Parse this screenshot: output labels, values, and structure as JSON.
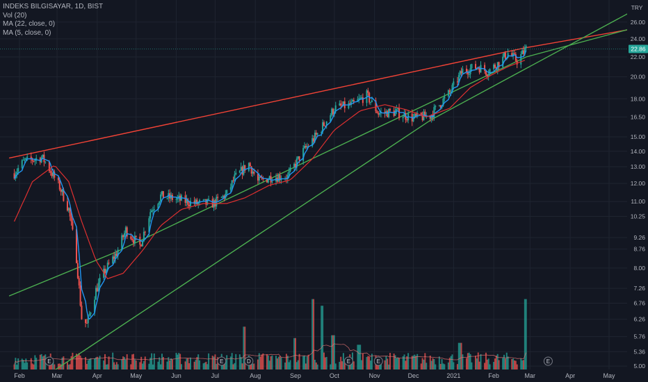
{
  "legend": {
    "symbol": "INDEKS BILGISAYAR, 1D, BIST",
    "vol": "Vol (20)",
    "ma22": "MA (22, close, 0)",
    "ma5": "MA (5, close, 0)"
  },
  "colors": {
    "background": "#131722",
    "grid": "#1f2430",
    "up": "#26a69a",
    "down": "#ef5350",
    "ma5": "#2196f3",
    "ma22": "#e03030",
    "resistance": "#f44336",
    "support": "#4caf50",
    "price_tag": "#26a69a",
    "text": "#b2b5be"
  },
  "chart_data": {
    "type": "candlestick",
    "currency": "TRY",
    "y_scale": "log",
    "ylim": [
      4.92,
      28.9
    ],
    "price_ticks": [
      "5.00",
      "5.36",
      "5.76",
      "6.26",
      "6.76",
      "7.26",
      "8.00",
      "8.76",
      "9.26",
      "10.25",
      "11.00",
      "12.00",
      "13.00",
      "14.00",
      "15.00",
      "16.50",
      "18.00",
      "20.00",
      "22.00",
      "24.00",
      "26.00"
    ],
    "last_price": "22.86",
    "x_labels": [
      "Feb",
      "Mar",
      "Apr",
      "May",
      "Jun",
      "Jul",
      "Aug",
      "Sep",
      "Oct",
      "Nov",
      "Dec",
      "2021",
      "Feb",
      "Mar",
      "Apr",
      "May"
    ],
    "price_path": [
      [
        "2020-01-28",
        12.6
      ],
      [
        "2020-02-04",
        13.3
      ],
      [
        "2020-02-18",
        13.6
      ],
      [
        "2020-02-21",
        13.3
      ],
      [
        "2020-03-03",
        11.8
      ],
      [
        "2020-03-10",
        10.6
      ],
      [
        "2020-03-16",
        8.4
      ],
      [
        "2020-03-20",
        6.3
      ],
      [
        "2020-03-24",
        6.1
      ],
      [
        "2020-03-31",
        7.2
      ],
      [
        "2020-04-07",
        7.9
      ],
      [
        "2020-04-16",
        8.6
      ],
      [
        "2020-04-23",
        9.6
      ],
      [
        "2020-05-04",
        8.9
      ],
      [
        "2020-05-12",
        10.5
      ],
      [
        "2020-05-20",
        11.3
      ],
      [
        "2020-06-03",
        11.1
      ],
      [
        "2020-06-16",
        10.9
      ],
      [
        "2020-06-30",
        10.9
      ],
      [
        "2020-07-10",
        11.4
      ],
      [
        "2020-07-16",
        12.3
      ],
      [
        "2020-07-27",
        13.2
      ],
      [
        "2020-08-03",
        12.1
      ],
      [
        "2020-08-14",
        12.4
      ],
      [
        "2020-08-26",
        12.4
      ],
      [
        "2020-09-07",
        14.0
      ],
      [
        "2020-09-18",
        15.2
      ],
      [
        "2020-10-01",
        17.2
      ],
      [
        "2020-10-15",
        17.5
      ],
      [
        "2020-10-26",
        18.3
      ],
      [
        "2020-11-04",
        16.8
      ],
      [
        "2020-11-17",
        16.9
      ],
      [
        "2020-12-01",
        16.4
      ],
      [
        "2020-12-14",
        16.6
      ],
      [
        "2020-12-30",
        18.7
      ],
      [
        "2021-01-08",
        20.6
      ],
      [
        "2021-01-20",
        21.0
      ],
      [
        "2021-01-27",
        20.5
      ],
      [
        "2021-02-05",
        21.4
      ],
      [
        "2021-02-12",
        22.4
      ],
      [
        "2021-02-19",
        21.6
      ],
      [
        "2021-02-26",
        22.86
      ]
    ],
    "ma22_path": [
      [
        "2020-01-28",
        10.0
      ],
      [
        "2020-02-11",
        12.1
      ],
      [
        "2020-02-28",
        13.1
      ],
      [
        "2020-03-10",
        12.1
      ],
      [
        "2020-03-20",
        10.0
      ],
      [
        "2020-03-31",
        8.3
      ],
      [
        "2020-04-09",
        7.6
      ],
      [
        "2020-04-21",
        7.8
      ],
      [
        "2020-05-06",
        8.7
      ],
      [
        "2020-05-20",
        9.8
      ],
      [
        "2020-06-05",
        10.6
      ],
      [
        "2020-06-22",
        10.9
      ],
      [
        "2020-07-10",
        10.9
      ],
      [
        "2020-07-24",
        11.2
      ],
      [
        "2020-08-12",
        11.9
      ],
      [
        "2020-08-28",
        12.2
      ],
      [
        "2020-09-14",
        13.5
      ],
      [
        "2020-10-01",
        15.5
      ],
      [
        "2020-10-21",
        17.0
      ],
      [
        "2020-11-09",
        17.5
      ],
      [
        "2020-11-25",
        17.1
      ],
      [
        "2020-12-11",
        16.5
      ],
      [
        "2020-12-29",
        17.2
      ],
      [
        "2021-01-14",
        19.0
      ],
      [
        "2021-01-29",
        20.1
      ],
      [
        "2021-02-12",
        21.0
      ],
      [
        "2021-02-26",
        21.7
      ]
    ],
    "trendlines": [
      {
        "style": "resistance",
        "points": [
          [
            "2020-01-24",
            13.55
          ],
          [
            "2021-02-26",
            23.0
          ],
          [
            "2021-06-15",
            25.9
          ]
        ]
      },
      {
        "style": "support",
        "points": [
          [
            "2020-01-24",
            7.0
          ],
          [
            "2020-04-16",
            8.65
          ],
          [
            "2021-02-26",
            22.0
          ],
          [
            "2021-06-15",
            26.4
          ]
        ]
      },
      {
        "style": "support",
        "points": [
          [
            "2020-02-28",
            4.9
          ],
          [
            "2020-12-15",
            16.3
          ],
          [
            "2021-06-15",
            30.0
          ]
        ]
      }
    ],
    "volume_spikes": [
      [
        "2020-07-24",
        0.45
      ],
      [
        "2020-08-31",
        0.33
      ],
      [
        "2020-09-14",
        0.74
      ],
      [
        "2020-09-21",
        0.67
      ],
      [
        "2020-09-30",
        0.36
      ],
      [
        "2020-10-20",
        0.26
      ],
      [
        "2021-01-06",
        0.28
      ],
      [
        "2021-02-26",
        0.74
      ]
    ],
    "event_markers": [
      "E",
      "E",
      "D",
      "E",
      "E",
      "E"
    ]
  }
}
